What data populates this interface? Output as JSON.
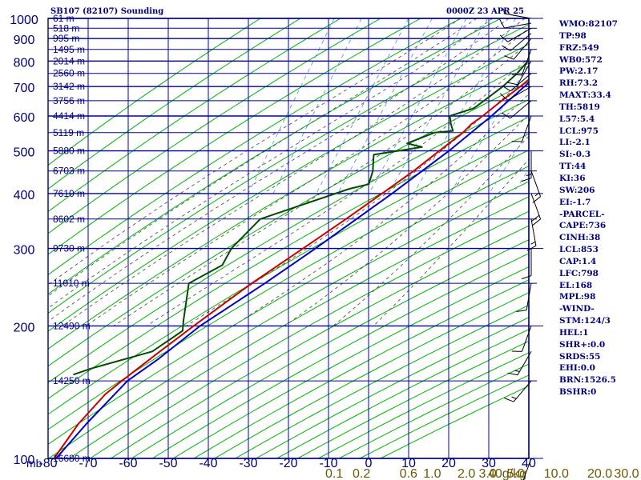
{
  "header": {
    "left_title": "SB107 (82107) Sounding",
    "right_title": "0000Z 23 APR 25"
  },
  "stats": [
    "WMO:82107",
    "TP:98",
    "FRZ:549",
    "WB0:572",
    "PW:2.17",
    "RH:73.2",
    "MAXT:33.4",
    "TH:5819",
    "L57:5.4",
    "LCL:975",
    "LI:-2.1",
    "SI:-0.3",
    "TT:44",
    "KI:36",
    "SW:206",
    "EI:-1.7",
    "-PARCEL-",
    "CAPE:736",
    "CINH:38",
    "LCL:853",
    "CAP:1.4",
    "LFC:798",
    "EL:168",
    "MPL:98",
    "-WIND-",
    "STM:124/3",
    "HEL:1",
    "SHR+:0.0",
    "SRDS:55",
    "EHI:0.0",
    "BRN:1526.5",
    "BSHR:0"
  ],
  "colors": {
    "frame": "#00007a",
    "isobar": "#0000a0",
    "isotherm": "#0000a0",
    "dry_adiabat": "#00b400",
    "moist_adiabat": "#555555",
    "mixing_ratio": "#5b9bd5",
    "temperature": "#cc0000",
    "dewpoint": "#004d00",
    "parcel": "#0000cc",
    "wind": "#000000",
    "axis_text": "#00007a",
    "mixing_text": "#6b5a00"
  },
  "chart_data": {
    "type": "line",
    "chart_kind": "skew-t log-p sounding",
    "y_axis": {
      "label": "mb",
      "scale": "log",
      "range": [
        1000,
        100
      ],
      "ticks": [
        100,
        200,
        300,
        400,
        500,
        600,
        700,
        800,
        900,
        1000
      ]
    },
    "x_axis": {
      "label": "",
      "unit": "°C",
      "range": [
        -80,
        40
      ],
      "ticks": [
        -80,
        -70,
        -60,
        -50,
        -40,
        -30,
        -20,
        -10,
        0,
        10,
        20,
        30,
        40
      ]
    },
    "mixing_ratio_axis": {
      "unit": "g/kg",
      "ticks": [
        {
          "value": 0.1,
          "label": "0.1"
        },
        {
          "value": 0.2,
          "label": "0.2"
        },
        {
          "value": 0.6,
          "label": "0.6"
        },
        {
          "value": 1.0,
          "label": "1.0"
        },
        {
          "value": 2.0,
          "label": "2.0"
        },
        {
          "value": 3.0,
          "label": "3.0"
        },
        {
          "value": 5.0,
          "label": "5.0"
        },
        {
          "value": 10.0,
          "label": "10.0"
        },
        {
          "value": 20.0,
          "label": "20.0"
        },
        {
          "value": 30.0,
          "label": "30.0"
        },
        {
          "value": 40.0,
          "label": "40g/kg"
        }
      ]
    },
    "height_labels": [
      {
        "p": 100,
        "label": "16680 m"
      },
      {
        "p": 150,
        "label": "14250 m"
      },
      {
        "p": 200,
        "label": "12490 m"
      },
      {
        "p": 250,
        "label": "11010 m"
      },
      {
        "p": 300,
        "label": "9730 m"
      },
      {
        "p": 350,
        "label": "8602 m"
      },
      {
        "p": 400,
        "label": "7610 m"
      },
      {
        "p": 450,
        "label": "6703 m"
      },
      {
        "p": 500,
        "label": "5880 m"
      },
      {
        "p": 550,
        "label": "5119 m"
      },
      {
        "p": 600,
        "label": "4414 m"
      },
      {
        "p": 650,
        "label": "3756 m"
      },
      {
        "p": 700,
        "label": "3142 m"
      },
      {
        "p": 750,
        "label": "2560 m"
      },
      {
        "p": 800,
        "label": "2014 m"
      },
      {
        "p": 850,
        "label": "1495 m"
      },
      {
        "p": 900,
        "label": "995 m"
      },
      {
        "p": 950,
        "label": "518 m"
      },
      {
        "p": 1000,
        "label": "61 m"
      }
    ],
    "series": [
      {
        "key": "temperature",
        "points": [
          [
            1000,
            28.0
          ],
          [
            995,
            30.0
          ],
          [
            975,
            28.2
          ],
          [
            950,
            25.4
          ],
          [
            925,
            23.2
          ],
          [
            900,
            21.0
          ],
          [
            875,
            19.6
          ],
          [
            850,
            18.2
          ],
          [
            825,
            17.1
          ],
          [
            800,
            16.0
          ],
          [
            750,
            13.0
          ],
          [
            700,
            10.0
          ],
          [
            650,
            6.4
          ],
          [
            600,
            2.8
          ],
          [
            575,
            0.6
          ],
          [
            550,
            -0.9
          ],
          [
            500,
            -5.4
          ],
          [
            450,
            -10.3
          ],
          [
            400,
            -16.5
          ],
          [
            350,
            -23.6
          ],
          [
            300,
            -32.1
          ],
          [
            250,
            -42.3
          ],
          [
            200,
            -53.6
          ],
          [
            175,
            -60.1
          ],
          [
            150,
            -67.4
          ],
          [
            140,
            -70.5
          ],
          [
            120,
            -75.0
          ],
          [
            100,
            -78.5
          ]
        ]
      },
      {
        "key": "dewpoint",
        "points": [
          [
            1000,
            23.0
          ],
          [
            995,
            25.2
          ],
          [
            975,
            20.6
          ],
          [
            950,
            19.0
          ],
          [
            925,
            17.6
          ],
          [
            900,
            15.6
          ],
          [
            850,
            12.7
          ],
          [
            800,
            10.0
          ],
          [
            750,
            8.2
          ],
          [
            700,
            5.6
          ],
          [
            650,
            2.0
          ],
          [
            625,
            0.0
          ],
          [
            600,
            -5.4
          ],
          [
            575,
            -4.5
          ],
          [
            555,
            -3.5
          ],
          [
            550,
            -8.0
          ],
          [
            520,
            -14.0
          ],
          [
            510,
            -10.0
          ],
          [
            490,
            -21.5
          ],
          [
            450,
            -20.5
          ],
          [
            420,
            -20.5
          ],
          [
            410,
            -25.0
          ],
          [
            350,
            -45.0
          ],
          [
            300,
            -50.0
          ],
          [
            275,
            -51.0
          ],
          [
            250,
            -58.0
          ],
          [
            205,
            -56.5
          ],
          [
            195,
            -56.0
          ],
          [
            175,
            -62.0
          ],
          [
            160,
            -76.0
          ],
          [
            155,
            -80.0
          ]
        ]
      },
      {
        "key": "parcel",
        "points": [
          [
            1000,
            31.0
          ],
          [
            975,
            28.2
          ],
          [
            950,
            25.5
          ],
          [
            925,
            23.0
          ],
          [
            900,
            21.0
          ],
          [
            853,
            18.8
          ],
          [
            800,
            16.2
          ],
          [
            700,
            11.0
          ],
          [
            600,
            5.0
          ],
          [
            500,
            -3.0
          ],
          [
            400,
            -14.0
          ],
          [
            300,
            -29.0
          ],
          [
            250,
            -39.0
          ],
          [
            200,
            -52.0
          ],
          [
            168,
            -60.0
          ],
          [
            150,
            -66.0
          ],
          [
            120,
            -73.0
          ],
          [
            100,
            -78.0
          ]
        ]
      }
    ],
    "wind_barbs": [
      {
        "p": 1000,
        "dir": 280,
        "spd": 5
      },
      {
        "p": 975,
        "dir": 260,
        "spd": 10
      },
      {
        "p": 950,
        "dir": 240,
        "spd": 10
      },
      {
        "p": 925,
        "dir": 230,
        "spd": 10
      },
      {
        "p": 900,
        "dir": 220,
        "spd": 10
      },
      {
        "p": 850,
        "dir": 200,
        "spd": 10
      },
      {
        "p": 800,
        "dir": 210,
        "spd": 10
      },
      {
        "p": 750,
        "dir": 230,
        "spd": 10
      },
      {
        "p": 700,
        "dir": 240,
        "spd": 10
      },
      {
        "p": 650,
        "dir": 230,
        "spd": 10
      },
      {
        "p": 600,
        "dir": 200,
        "spd": 10
      },
      {
        "p": 500,
        "dir": 180,
        "spd": 15
      },
      {
        "p": 450,
        "dir": 160,
        "spd": 15
      },
      {
        "p": 400,
        "dir": 160,
        "spd": 20
      },
      {
        "p": 350,
        "dir": 170,
        "spd": 15
      },
      {
        "p": 300,
        "dir": 180,
        "spd": 10
      },
      {
        "p": 250,
        "dir": 190,
        "spd": 10
      },
      {
        "p": 200,
        "dir": 200,
        "spd": 10
      },
      {
        "p": 175,
        "dir": 210,
        "spd": 15
      },
      {
        "p": 150,
        "dir": 220,
        "spd": 15
      },
      {
        "p": 100,
        "dir": 200,
        "spd": 10
      }
    ]
  }
}
